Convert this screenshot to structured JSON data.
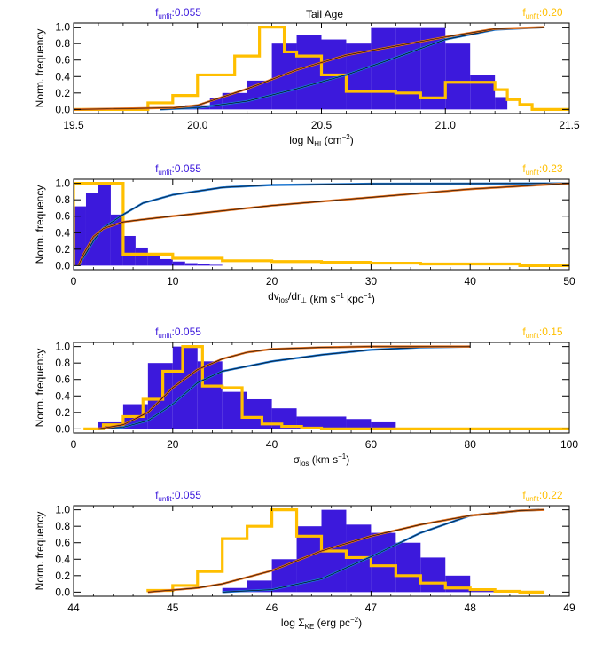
{
  "figure_title": "Tail Age",
  "colors": {
    "purple": "#3c19dc",
    "gold": "#ffbf00",
    "blue_cdf": "#1e78d2",
    "orange_cdf": "#e0701f",
    "axis": "#000000"
  },
  "chart_data": [
    {
      "type": "bar",
      "xlabel": "log N",
      "xlabel_sub": "HI",
      "xlabel_unit": " (cm",
      "xlabel_sup": "−2",
      "xlabel_tail": ")",
      "ylabel": "Norm. frequency",
      "xlim": [
        19.5,
        21.5
      ],
      "ylim": [
        -0.05,
        1.05
      ],
      "xticks": [
        19.5,
        20.0,
        20.5,
        21.0,
        21.5
      ],
      "xtick_labels": [
        "19.5",
        "20.0",
        "20.5",
        "21.0",
        "21.5"
      ],
      "yticks": [
        0.0,
        0.2,
        0.4,
        0.6,
        0.8,
        1.0
      ],
      "ytick_labels": [
        "0.0",
        "0.2",
        "0.4",
        "0.6",
        "0.8",
        "1.0"
      ],
      "left_label": {
        "base": "f",
        "sub": "unfit",
        "value": ":0.055"
      },
      "right_label": {
        "base": "f",
        "sub": "unfit",
        "value": ":0.20"
      },
      "filled_histogram": {
        "edges": [
          19.85,
          19.95,
          20.05,
          20.1,
          20.2,
          20.3,
          20.4,
          20.5,
          20.6,
          20.7,
          20.8,
          20.9,
          21.0,
          21.1,
          21.2,
          21.25
        ],
        "values": [
          0.02,
          0.05,
          0.14,
          0.2,
          0.35,
          0.8,
          0.9,
          0.85,
          0.8,
          1.0,
          1.0,
          1.0,
          0.8,
          0.42,
          0.15
        ]
      },
      "step_histogram": {
        "edges": [
          19.5,
          19.8,
          19.9,
          20.0,
          20.15,
          20.25,
          20.35,
          20.4,
          20.5,
          20.6,
          20.8,
          20.9,
          21.0,
          21.1,
          21.2,
          21.25,
          21.3,
          21.35,
          21.5
        ],
        "values": [
          0.0,
          0.08,
          0.17,
          0.42,
          0.65,
          1.0,
          0.7,
          0.65,
          0.42,
          0.22,
          0.2,
          0.14,
          0.33,
          0.33,
          0.24,
          0.12,
          0.06,
          0.0
        ]
      },
      "cdf_blue": {
        "x": [
          19.85,
          20.0,
          20.2,
          20.4,
          20.6,
          20.8,
          21.0,
          21.2,
          21.4
        ],
        "y": [
          0.0,
          0.02,
          0.1,
          0.25,
          0.42,
          0.63,
          0.85,
          0.97,
          1.0
        ]
      },
      "cdf_orange": {
        "x": [
          19.5,
          19.9,
          20.0,
          20.2,
          20.4,
          20.6,
          20.8,
          21.0,
          21.2,
          21.4
        ],
        "y": [
          0.0,
          0.02,
          0.05,
          0.25,
          0.48,
          0.66,
          0.77,
          0.88,
          0.98,
          1.0
        ]
      }
    },
    {
      "type": "bar",
      "xlabel": "dv",
      "xlabel_sub": "los",
      "xlabel_unit": "/dr",
      "xlabel_sub2": "⊥",
      "xlabel_tail": " (km s",
      "xlabel_sup": "−1",
      "xlabel_tail2": " kpc",
      "xlabel_sup2": "−1",
      "xlabel_tail3": ")",
      "ylabel": "Norm. frequency",
      "xlim": [
        0,
        50
      ],
      "ylim": [
        -0.05,
        1.05
      ],
      "xticks": [
        0,
        10,
        20,
        30,
        40,
        50
      ],
      "xtick_labels": [
        "0",
        "10",
        "20",
        "30",
        "40",
        "50"
      ],
      "yticks": [
        0.0,
        0.2,
        0.4,
        0.6,
        0.8,
        1.0
      ],
      "ytick_labels": [
        "0.0",
        "0.2",
        "0.4",
        "0.6",
        "0.8",
        "1.0"
      ],
      "left_label": {
        "base": "f",
        "sub": "unfit",
        "value": ":0.055"
      },
      "right_label": {
        "base": "f",
        "sub": "unfit",
        "value": ":0.23"
      },
      "filled_histogram": {
        "edges": [
          0,
          1.25,
          2.5,
          3.75,
          5.0,
          6.25,
          7.5,
          8.75,
          10.0,
          11.25,
          12.5,
          13.75,
          15.0
        ],
        "values": [
          0.72,
          0.88,
          1.0,
          0.62,
          0.36,
          0.22,
          0.13,
          0.08,
          0.05,
          0.03,
          0.02,
          0.01
        ]
      },
      "step_histogram": {
        "edges": [
          0,
          5,
          10,
          15,
          20,
          25,
          30,
          35,
          40,
          45,
          50
        ],
        "values": [
          1.0,
          0.14,
          0.09,
          0.06,
          0.05,
          0.04,
          0.03,
          0.02,
          0.02,
          0.0
        ]
      },
      "cdf_blue": {
        "x": [
          0.5,
          1,
          2,
          3,
          5,
          7,
          10,
          15,
          20,
          30,
          50
        ],
        "y": [
          0.0,
          0.1,
          0.3,
          0.46,
          0.62,
          0.76,
          0.86,
          0.95,
          0.98,
          0.995,
          1.0
        ]
      },
      "cdf_orange": {
        "x": [
          0.5,
          1,
          2,
          3,
          5,
          7,
          10,
          20,
          30,
          40,
          50
        ],
        "y": [
          0.0,
          0.14,
          0.35,
          0.45,
          0.53,
          0.56,
          0.6,
          0.73,
          0.83,
          0.93,
          1.0
        ]
      }
    },
    {
      "type": "bar",
      "xlabel": "σ",
      "xlabel_sub": "los",
      "xlabel_unit": " (km s",
      "xlabel_sup": "−1",
      "xlabel_tail": ")",
      "ylabel": "Norm. frequency",
      "xlim": [
        0,
        100
      ],
      "ylim": [
        -0.05,
        1.05
      ],
      "xticks": [
        0,
        20,
        40,
        60,
        80,
        100
      ],
      "xtick_labels": [
        "0",
        "20",
        "40",
        "60",
        "80",
        "100"
      ],
      "yticks": [
        0.0,
        0.2,
        0.4,
        0.6,
        0.8,
        1.0
      ],
      "ytick_labels": [
        "0.0",
        "0.2",
        "0.4",
        "0.6",
        "0.8",
        "1.0"
      ],
      "left_label": {
        "base": "f",
        "sub": "unfit",
        "value": ":0.055"
      },
      "right_label": {
        "base": "f",
        "sub": "unfit",
        "value": ":0.15"
      },
      "filled_histogram": {
        "edges": [
          5,
          10,
          15,
          20,
          25,
          30,
          35,
          40,
          45,
          50,
          55,
          60,
          65
        ],
        "values": [
          0.08,
          0.3,
          0.8,
          1.0,
          0.82,
          0.45,
          0.36,
          0.25,
          0.15,
          0.15,
          0.12,
          0.08
        ]
      },
      "step_histogram": {
        "edges": [
          2,
          6,
          10,
          14,
          18,
          22,
          26,
          30,
          34,
          38,
          42,
          46,
          50,
          60,
          100
        ],
        "values": [
          0.0,
          0.05,
          0.15,
          0.36,
          0.7,
          1.0,
          0.52,
          0.5,
          0.14,
          0.06,
          0.03,
          0.01,
          0.0,
          0.0
        ]
      },
      "cdf_blue": {
        "x": [
          5,
          10,
          15,
          20,
          25,
          30,
          40,
          50,
          60,
          70,
          80
        ],
        "y": [
          0.0,
          0.02,
          0.1,
          0.3,
          0.56,
          0.7,
          0.82,
          0.9,
          0.96,
          0.99,
          1.0
        ]
      },
      "cdf_orange": {
        "x": [
          5,
          10,
          15,
          20,
          25,
          30,
          35,
          40,
          50,
          60,
          80
        ],
        "y": [
          0.0,
          0.05,
          0.2,
          0.5,
          0.72,
          0.85,
          0.93,
          0.97,
          0.99,
          1.0,
          1.0
        ]
      }
    },
    {
      "type": "bar",
      "xlabel": "log Σ",
      "xlabel_sub": "KE",
      "xlabel_unit": " (erg pc",
      "xlabel_sup": "−2",
      "xlabel_tail": ")",
      "ylabel": "Norm. frequency",
      "xlim": [
        44,
        49
      ],
      "ylim": [
        -0.05,
        1.05
      ],
      "xticks": [
        44,
        45,
        46,
        47,
        48,
        49
      ],
      "xtick_labels": [
        "44",
        "45",
        "46",
        "47",
        "48",
        "49"
      ],
      "yticks": [
        0.0,
        0.2,
        0.4,
        0.6,
        0.8,
        1.0
      ],
      "ytick_labels": [
        "0.0",
        "0.2",
        "0.4",
        "0.6",
        "0.8",
        "1.0"
      ],
      "left_label": {
        "base": "f",
        "sub": "unfit",
        "value": ":0.055"
      },
      "right_label": {
        "base": "f",
        "sub": "unfit",
        "value": ":0.22"
      },
      "filled_histogram": {
        "edges": [
          45.5,
          45.75,
          46.0,
          46.25,
          46.5,
          46.75,
          47.0,
          47.25,
          47.5,
          47.75,
          48.0,
          48.25
        ],
        "values": [
          0.05,
          0.14,
          0.4,
          0.8,
          1.0,
          0.82,
          0.72,
          0.6,
          0.42,
          0.2,
          0.04
        ]
      },
      "step_histogram": {
        "edges": [
          44.75,
          45.0,
          45.25,
          45.5,
          45.75,
          46.0,
          46.25,
          46.5,
          46.75,
          47.0,
          47.25,
          47.5,
          47.75,
          48.0,
          48.25,
          48.5,
          48.75
        ],
        "values": [
          0.02,
          0.08,
          0.25,
          0.65,
          0.8,
          1.0,
          0.68,
          0.5,
          0.42,
          0.32,
          0.2,
          0.11,
          0.05,
          0.03,
          0.01,
          0.0
        ]
      },
      "cdf_blue": {
        "x": [
          45.5,
          46.0,
          46.5,
          47.0,
          47.5,
          48.0,
          48.5,
          48.7
        ],
        "y": [
          0.0,
          0.03,
          0.16,
          0.43,
          0.72,
          0.93,
          0.99,
          1.0
        ]
      },
      "cdf_orange": {
        "x": [
          44.75,
          45.25,
          45.5,
          46.0,
          46.5,
          47.0,
          47.5,
          48.0,
          48.5,
          48.75
        ],
        "y": [
          0.0,
          0.05,
          0.1,
          0.26,
          0.5,
          0.68,
          0.82,
          0.93,
          0.99,
          1.0
        ]
      }
    }
  ]
}
